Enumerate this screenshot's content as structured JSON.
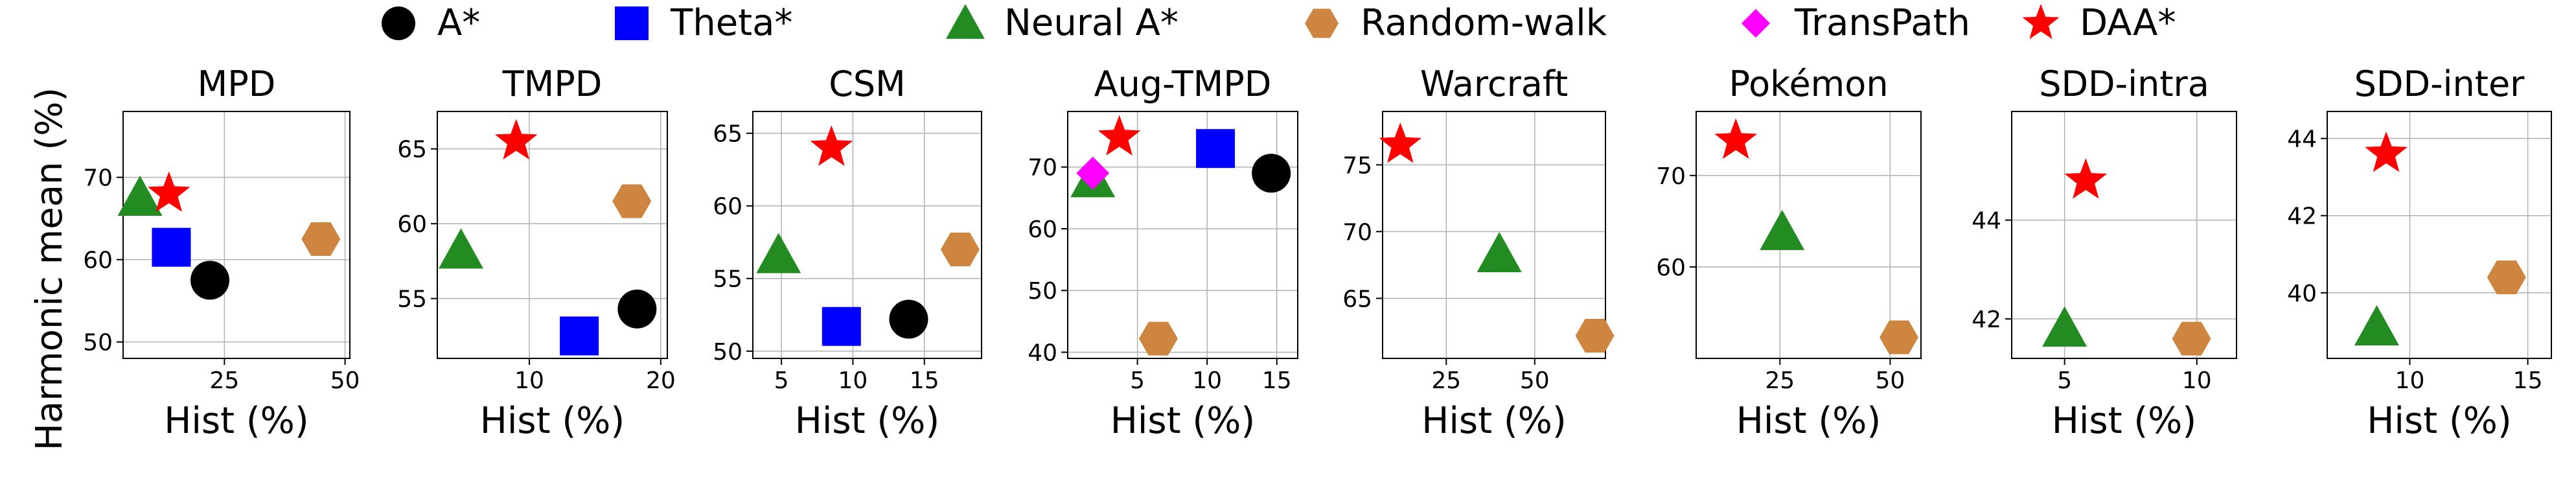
{
  "legend": [
    {
      "key": "a_star",
      "label": "A*",
      "marker": "circle",
      "color": "#000000"
    },
    {
      "key": "theta_star",
      "label": "Theta*",
      "marker": "square",
      "color": "#0000ff"
    },
    {
      "key": "neural_a_star",
      "label": "Neural A*",
      "marker": "triangle",
      "color": "#228b22"
    },
    {
      "key": "random_walk",
      "label": "Random-walk",
      "marker": "hexagon",
      "color": "#cd853f"
    },
    {
      "key": "transpath",
      "label": "TransPath",
      "marker": "diamond",
      "color": "#ff00ff"
    },
    {
      "key": "daa_star",
      "label": "DAA*",
      "marker": "star",
      "color": "#ff0000"
    }
  ],
  "ylabel": "Harmonic mean (%)",
  "chart_data": [
    {
      "type": "scatter",
      "title": "MPD",
      "xlabel": "Hist (%)",
      "xlim": [
        4,
        51
      ],
      "ylim": [
        48,
        78
      ],
      "xticks": [
        25,
        50
      ],
      "yticks": [
        50,
        60,
        70
      ],
      "points": [
        {
          "series": "a_star",
          "x": 22,
          "y": 57.5
        },
        {
          "series": "theta_star",
          "x": 14,
          "y": 61.5
        },
        {
          "series": "neural_a_star",
          "x": 7.5,
          "y": 67.5
        },
        {
          "series": "random_walk",
          "x": 45,
          "y": 62.5
        },
        {
          "series": "daa_star",
          "x": 13.5,
          "y": 68
        }
      ]
    },
    {
      "type": "scatter",
      "title": "TMPD",
      "xlabel": "Hist (%)",
      "xlim": [
        3,
        20.5
      ],
      "ylim": [
        51,
        67.5
      ],
      "xticks": [
        10,
        20
      ],
      "yticks": [
        55,
        60,
        65
      ],
      "points": [
        {
          "series": "a_star",
          "x": 18.2,
          "y": 54.3
        },
        {
          "series": "theta_star",
          "x": 13.8,
          "y": 52.5
        },
        {
          "series": "neural_a_star",
          "x": 4.8,
          "y": 58.2
        },
        {
          "series": "random_walk",
          "x": 17.8,
          "y": 61.5
        },
        {
          "series": "daa_star",
          "x": 9,
          "y": 65.5
        }
      ]
    },
    {
      "type": "scatter",
      "title": "CSM",
      "xlabel": "Hist (%)",
      "xlim": [
        3,
        19
      ],
      "ylim": [
        49.5,
        66.5
      ],
      "xticks": [
        5,
        10,
        15
      ],
      "yticks": [
        50,
        55,
        60,
        65
      ],
      "points": [
        {
          "series": "a_star",
          "x": 13.9,
          "y": 52.2
        },
        {
          "series": "theta_star",
          "x": 9.2,
          "y": 51.7
        },
        {
          "series": "neural_a_star",
          "x": 4.8,
          "y": 56.6
        },
        {
          "series": "random_walk",
          "x": 17.5,
          "y": 57
        },
        {
          "series": "daa_star",
          "x": 8.5,
          "y": 64
        }
      ]
    },
    {
      "type": "scatter",
      "title": "Aug-TMPD",
      "xlabel": "Hist (%)",
      "xlim": [
        0,
        16.5
      ],
      "ylim": [
        39,
        79
      ],
      "xticks": [
        5,
        10,
        15
      ],
      "yticks": [
        40,
        50,
        60,
        70
      ],
      "points": [
        {
          "series": "a_star",
          "x": 14.6,
          "y": 69
        },
        {
          "series": "theta_star",
          "x": 10.6,
          "y": 73
        },
        {
          "series": "neural_a_star",
          "x": 1.8,
          "y": 68
        },
        {
          "series": "random_walk",
          "x": 6.5,
          "y": 42.2
        },
        {
          "series": "transpath",
          "x": 1.8,
          "y": 69
        },
        {
          "series": "daa_star",
          "x": 3.7,
          "y": 74.8
        }
      ]
    },
    {
      "type": "scatter",
      "title": "Warcraft",
      "xlabel": "Hist (%)",
      "xlim": [
        7,
        70
      ],
      "ylim": [
        60.5,
        79
      ],
      "xticks": [
        25,
        50
      ],
      "yticks": [
        65,
        70,
        75
      ],
      "points": [
        {
          "series": "neural_a_star",
          "x": 40,
          "y": 68.3
        },
        {
          "series": "random_walk",
          "x": 67,
          "y": 62.2
        },
        {
          "series": "daa_star",
          "x": 12,
          "y": 76.5
        }
      ]
    },
    {
      "type": "scatter",
      "title": "Pokémon",
      "xlabel": "Hist (%)",
      "xlim": [
        6,
        57
      ],
      "ylim": [
        50,
        77
      ],
      "xticks": [
        25,
        50
      ],
      "yticks": [
        60,
        70
      ],
      "points": [
        {
          "series": "neural_a_star",
          "x": 25.5,
          "y": 63.8
        },
        {
          "series": "random_walk",
          "x": 52,
          "y": 52.3
        },
        {
          "series": "daa_star",
          "x": 15,
          "y": 73.8
        }
      ]
    },
    {
      "type": "scatter",
      "title": "SDD-intra",
      "xlabel": "Hist (%)",
      "xlim": [
        3,
        11.5
      ],
      "ylim": [
        41.2,
        46.2
      ],
      "xticks": [
        5,
        10
      ],
      "yticks": [
        42,
        44
      ],
      "points": [
        {
          "series": "neural_a_star",
          "x": 5,
          "y": 41.8
        },
        {
          "series": "random_walk",
          "x": 9.8,
          "y": 41.6
        },
        {
          "series": "daa_star",
          "x": 5.8,
          "y": 44.8
        }
      ]
    },
    {
      "type": "scatter",
      "title": "SDD-inter",
      "xlabel": "Hist (%)",
      "xlim": [
        6.5,
        16
      ],
      "ylim": [
        38.3,
        44.7
      ],
      "xticks": [
        10,
        15
      ],
      "yticks": [
        40,
        42,
        44
      ],
      "points": [
        {
          "series": "neural_a_star",
          "x": 8.6,
          "y": 39.1
        },
        {
          "series": "random_walk",
          "x": 14.1,
          "y": 40.4
        },
        {
          "series": "daa_star",
          "x": 9,
          "y": 43.6
        }
      ]
    }
  ]
}
